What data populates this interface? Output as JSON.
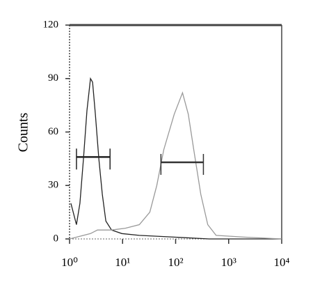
{
  "chart_data": {
    "type": "line",
    "ylabel": "Counts",
    "xscale": "log",
    "xlim": [
      1,
      10000
    ],
    "xticks": [
      {
        "value": 1,
        "label": "10⁰"
      },
      {
        "value": 10,
        "label": "10¹"
      },
      {
        "value": 100,
        "label": "10²"
      },
      {
        "value": 1000,
        "label": "10³"
      },
      {
        "value": 10000,
        "label": "10⁴"
      }
    ],
    "ylim": [
      0,
      120
    ],
    "yticks": [
      0,
      30,
      60,
      90,
      120
    ],
    "series": [
      {
        "color": "#222222",
        "x": [
          1.06,
          1.35,
          1.57,
          1.83,
          2.13,
          2.48,
          2.72,
          3.07,
          3.57,
          4.15,
          4.83,
          6.2,
          9.7,
          20.7,
          94,
          427,
          10000
        ],
        "values": [
          20,
          8,
          20,
          45,
          72,
          90,
          88,
          70,
          45,
          25,
          10,
          5,
          3,
          2,
          1,
          0,
          0
        ]
      },
      {
        "color": "#999999",
        "x": [
          1,
          2.48,
          3.36,
          6.2,
          11.3,
          20.7,
          32.6,
          44.1,
          59.7,
          94.2,
          135,
          173,
          220,
          298,
          403,
          580,
          1950,
          10000
        ],
        "values": [
          0,
          3,
          5,
          5,
          6,
          8,
          15,
          30,
          50,
          70,
          82,
          70,
          50,
          25,
          8,
          2,
          1,
          0
        ]
      }
    ],
    "gates": [
      {
        "color": "#222222",
        "x": [
          1.35,
          5.8
        ],
        "y": 46
      },
      {
        "color": "#333333",
        "x": [
          52.8,
          334
        ],
        "y": 43
      }
    ]
  }
}
